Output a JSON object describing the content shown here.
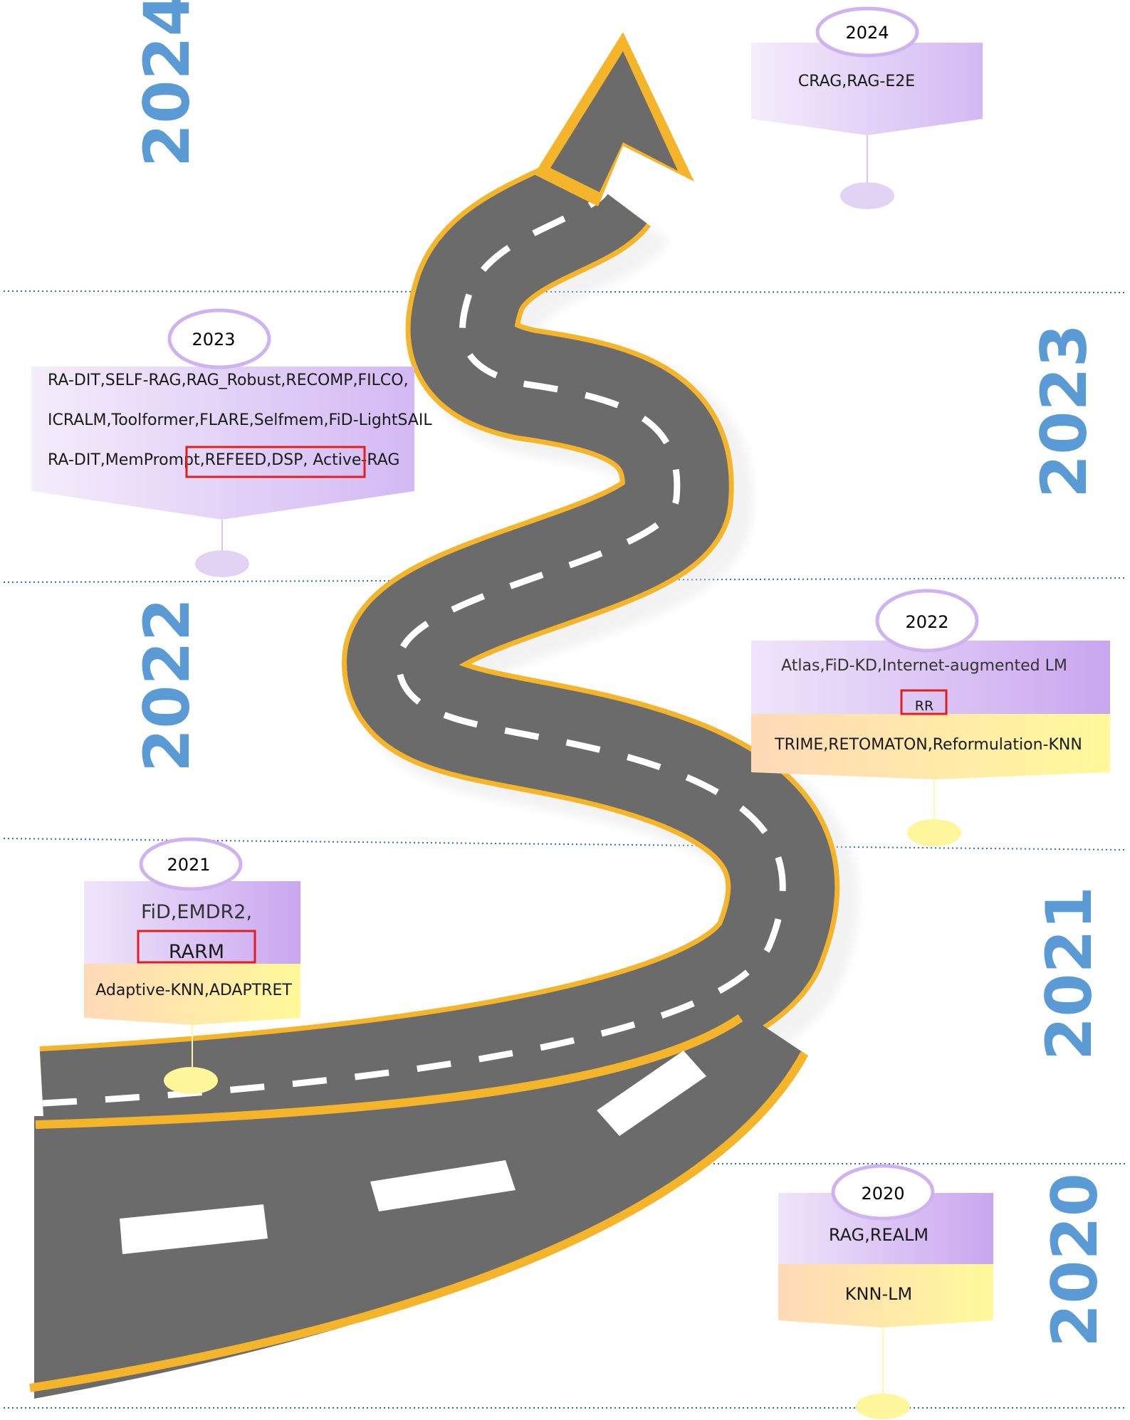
{
  "year_labels": [
    "2024",
    "2023",
    "2022",
    "2021",
    "2020"
  ],
  "milestones": {
    "y2024": {
      "year": "2024",
      "lines": [
        "CRAG,RAG-E2E"
      ]
    },
    "y2023": {
      "year": "2023",
      "lines": [
        "RA-DIT,SELF-RAG,RAG_Robust,RECOMP,FILCO,",
        "ICRALM,Toolformer,FLARE,Selfmem,FiD-LightSAIL",
        "RA-DIT,MemPrompt,REFEED,DSP, Active-RAG"
      ],
      "highlight": "REFEED,DSP, Active-RAG"
    },
    "y2022": {
      "year": "2022",
      "top_lines": [
        "Atlas,FiD-KD,Internet-augmented LM",
        "RR"
      ],
      "bottom_lines": [
        "TRIME,RETOMATON,Reformulation-KNN"
      ],
      "highlight": "RR"
    },
    "y2021": {
      "year": "2021",
      "top_lines": [
        "FiD,EMDR2,",
        "RARM"
      ],
      "bottom_lines": [
        "Adaptive-KNN,ADAPTRET"
      ],
      "highlight": "RARM"
    },
    "y2020": {
      "year": "2020",
      "top_lines": [
        "RAG,REALM"
      ],
      "bottom_lines": [
        "KNN-LM"
      ]
    }
  },
  "colors": {
    "road": "#6b6b6b",
    "road_edge": "#f5b52a",
    "lane": "#ffffff",
    "year_text": "#5b9bd5",
    "card_purple": "#d6bdf4",
    "card_yellow": "#fff59a",
    "highlight_box": "#e0201c",
    "divider": "#2f6fa8"
  }
}
